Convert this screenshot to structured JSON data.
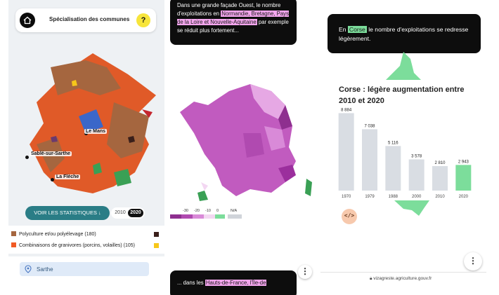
{
  "panel1": {
    "title": "Spécialisation des communes",
    "help": "?",
    "towns": [
      "Le Mans",
      "Sablé-sur-Sarthe",
      "La Flèche"
    ],
    "stats_button": "VOIR LES STATISTIQUES",
    "years": [
      "2010",
      "2020"
    ],
    "selected_year": "2020",
    "legend": [
      {
        "label": "Polyculture et/ou polyélevage (180)",
        "color": "#a5663f",
        "end_color": "#3a1f1a"
      },
      {
        "label": "Combinaisons de granivores (porcins, volailles) (105)",
        "color": "#f15a24",
        "end_color": "#f7c71a"
      }
    ],
    "search_value": "Sarthe"
  },
  "panel2": {
    "text_before": "Dans une grande façade Ouest, le nombre d'exploitations en ",
    "highlight1": "Normandie, Bretagne, Pays de la Loire et Nouvelle-Aquitaine",
    "text_after": " par exemple se réduit plus fortement...",
    "legend_labels": [
      "-30",
      "-20",
      "-10",
      "0",
      "N/A"
    ],
    "bottom_text_before": "... dans les ",
    "bottom_highlight": "Hauts-de-France, l'Île-de"
  },
  "panel3": {
    "text_before": "En ",
    "highlight": "Corse",
    "text_after": " le nombre d'exploitations se redresse légèrement.",
    "chart_title": "Corse : légère augmentation entre 2010 et 2020",
    "embed_label": "</>",
    "footer_url": "vizagreste.agriculture.gouv.fr"
  },
  "colors": {
    "bar_gray": "#d9dde3",
    "bar_highlight": "#7cdd9b",
    "dark": "#0d0d0d",
    "pink_highlight": "#f4a6ee"
  },
  "chart_data": {
    "type": "bar",
    "title": "Corse : légère augmentation entre 2010 et 2020",
    "categories": [
      "1970",
      "1979",
      "1988",
      "2000",
      "2010",
      "2020"
    ],
    "values": [
      8884,
      7038,
      5116,
      3578,
      2810,
      2943
    ],
    "value_labels": [
      "8 884",
      "7 038",
      "5 116",
      "3 578",
      "2 810",
      "2 943"
    ],
    "highlight_category": "2020",
    "ylim": [
      0,
      9000
    ],
    "grid": false
  }
}
